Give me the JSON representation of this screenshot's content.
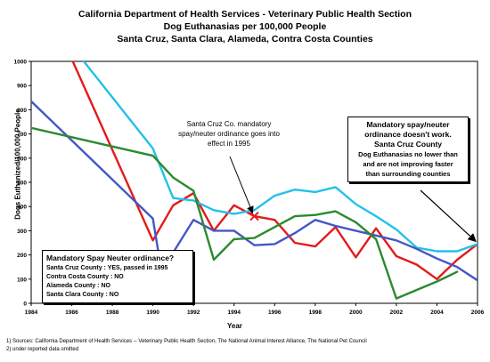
{
  "titles": {
    "line1": "California Department of Health Services - Veterinary Public Health Section",
    "line2": "Dog Euthanasias per 100,000 People",
    "line3": "Santa Cruz, Santa Clara, Alameda, Contra Costa Counties"
  },
  "chart_data": {
    "type": "line",
    "title": "Dog Euthanasias per 100,000 People",
    "xlabel": "Year",
    "ylabel": "Dogs Euthanized/100,000 People",
    "xlim": [
      1984,
      2006
    ],
    "ylim": [
      0,
      1000
    ],
    "x_ticks": [
      1984,
      1986,
      1988,
      1990,
      1992,
      1994,
      1996,
      1998,
      2000,
      2002,
      2004,
      2006
    ],
    "y_ticks": [
      0,
      100,
      200,
      300,
      400,
      500,
      600,
      700,
      800,
      900,
      1000
    ],
    "grid": "none",
    "series": [
      {
        "name": "Santa Cruz County : YES, passed in 1995",
        "color": "#e21b1b",
        "points": [
          [
            1986,
            1010
          ],
          [
            1990,
            260
          ],
          [
            1991,
            405
          ],
          [
            1992,
            455
          ],
          [
            1993,
            300
          ],
          [
            1994,
            405
          ],
          [
            1995,
            360
          ],
          [
            1996,
            345
          ],
          [
            1997,
            250
          ],
          [
            1998,
            235
          ],
          [
            1999,
            315
          ],
          [
            2000,
            190
          ],
          [
            2001,
            310
          ],
          [
            2002,
            195
          ],
          [
            2003,
            160
          ],
          [
            2004,
            100
          ],
          [
            2005,
            180
          ],
          [
            2006,
            245
          ]
        ]
      },
      {
        "name": "Contra Costa County : NO",
        "color": "#23c0ea",
        "points": [
          [
            1986.5,
            1010
          ],
          [
            1990,
            640
          ],
          [
            1991,
            435
          ],
          [
            1992,
            425
          ],
          [
            1993,
            385
          ],
          [
            1994,
            370
          ],
          [
            1995,
            385
          ],
          [
            1996,
            445
          ],
          [
            1997,
            470
          ],
          [
            1998,
            460
          ],
          [
            1999,
            480
          ],
          [
            2000,
            410
          ],
          [
            2001,
            360
          ],
          [
            2002,
            305
          ],
          [
            2003,
            230
          ],
          [
            2004,
            215
          ],
          [
            2005,
            215
          ],
          [
            2006,
            245
          ]
        ]
      },
      {
        "name": "Alameda County : NO",
        "color": "#4357c8",
        "points": [
          [
            1984,
            835
          ],
          [
            1990,
            350
          ],
          [
            1990.3,
            195
          ],
          [
            1990.55,
            195
          ],
          [
            1991,
            210
          ],
          [
            1992,
            345
          ],
          [
            1993,
            300
          ],
          [
            1994,
            300
          ],
          [
            1995,
            240
          ],
          [
            1996,
            245
          ],
          [
            1997,
            290
          ],
          [
            1998,
            345
          ],
          [
            1999,
            320
          ],
          [
            2000,
            300
          ],
          [
            2001,
            280
          ],
          [
            2002,
            260
          ],
          [
            2003,
            225
          ],
          [
            2004,
            185
          ],
          [
            2005,
            150
          ],
          [
            2006,
            95
          ]
        ]
      },
      {
        "name": "Santa Clara County : NO",
        "color": "#2a8a2f",
        "points": [
          [
            1984,
            725
          ],
          [
            1990,
            610
          ],
          [
            1991,
            520
          ],
          [
            1992,
            465
          ],
          [
            1993,
            180
          ],
          [
            1994,
            265
          ],
          [
            1995,
            270
          ],
          [
            1996,
            315
          ],
          [
            1997,
            360
          ],
          [
            1998,
            365
          ],
          [
            1999,
            380
          ],
          [
            2000,
            335
          ],
          [
            2001,
            265
          ],
          [
            2002,
            20
          ],
          [
            2003,
            55
          ],
          [
            2004,
            90
          ],
          [
            2005,
            130
          ]
        ]
      }
    ],
    "markers": [
      {
        "x": 1995,
        "y": 360,
        "symbol": "x",
        "color": "#e21b1b"
      }
    ],
    "legend": {
      "title": "Mandatory Spay Neuter ordinance?",
      "placement": "bottom-left"
    },
    "annotations": [
      {
        "lines": [
          "Santa Cruz Co. mandatory",
          "spay/neuter ordinance goes into",
          "effect in 1995"
        ],
        "points_to": [
          1995,
          360
        ]
      },
      {
        "lines": [
          "Mandatory spay/neuter",
          "ordinance doesn't work.",
          "Santa Cruz County",
          "Dog Euthanasias no lower than",
          "and are not improving faster",
          "than surrounding counties"
        ],
        "points_to": [
          2006,
          245
        ]
      }
    ]
  },
  "footnotes": [
    "1) Sources: California Department of Health Services -- Veterinary Public Health Section, The National Animal Interest Alliance, The National Pet Council",
    "2) under reported data omitted"
  ]
}
